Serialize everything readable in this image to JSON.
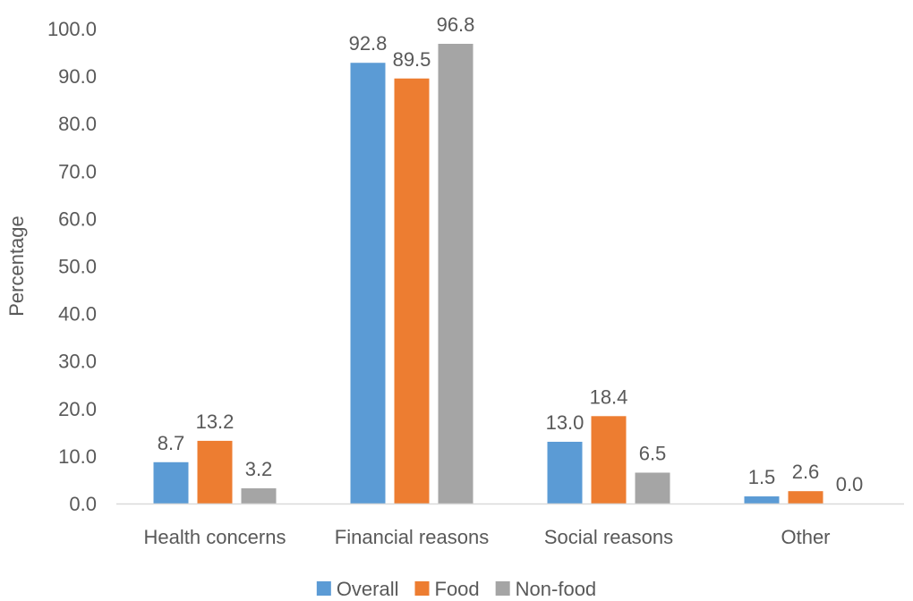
{
  "chart_data": {
    "type": "bar",
    "title": "",
    "xlabel": "",
    "ylabel": "Percentage",
    "ylim": [
      0,
      100
    ],
    "yticks": [
      "0.0",
      "10.0",
      "20.0",
      "30.0",
      "40.0",
      "50.0",
      "60.0",
      "70.0",
      "80.0",
      "90.0",
      "100.0"
    ],
    "categories": [
      "Health concerns",
      "Financial reasons",
      "Social reasons",
      "Other"
    ],
    "series": [
      {
        "name": "Overall",
        "color": "#5b9bd5",
        "values": [
          8.7,
          92.8,
          13.0,
          1.5
        ],
        "labels": [
          "8.7",
          "92.8",
          "13.0",
          "1.5"
        ]
      },
      {
        "name": "Food",
        "color": "#ed7d31",
        "values": [
          13.2,
          89.5,
          18.4,
          2.6
        ],
        "labels": [
          "13.2",
          "89.5",
          "18.4",
          "2.6"
        ]
      },
      {
        "name": "Non-food",
        "color": "#a5a5a5",
        "values": [
          3.2,
          96.8,
          6.5,
          0.0
        ],
        "labels": [
          "3.2",
          "96.8",
          "6.5",
          "0.0"
        ]
      }
    ],
    "grid": false,
    "legend_position": "bottom"
  }
}
